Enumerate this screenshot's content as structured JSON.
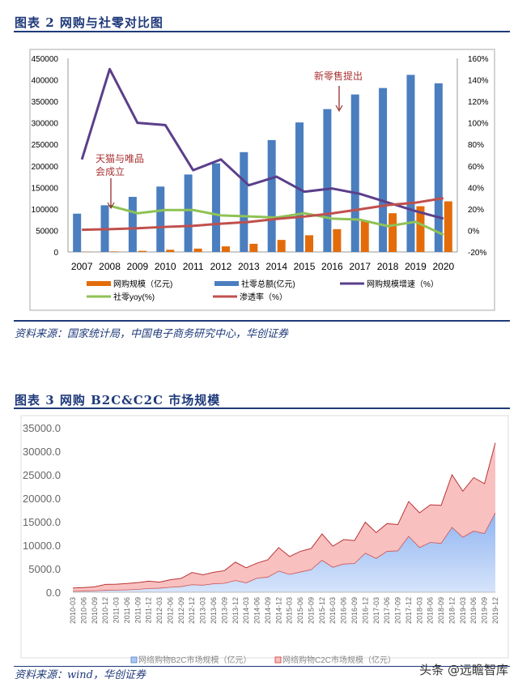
{
  "figure2": {
    "title": "图表 2   网购与社零对比图",
    "source": "资料来源：国家统计局，中国电子商务研究中心，华创证券"
  },
  "figure3": {
    "title": "图表 3   网购 B2C&C2C 市场规模",
    "source": "资料来源：wind，华创证券"
  },
  "watermark": "头条 @远瞻智库",
  "chart_data": [
    {
      "type": "bar+line",
      "categories": [
        "2007",
        "2008",
        "2009",
        "2010",
        "2011",
        "2012",
        "2013",
        "2014",
        "2015",
        "2016",
        "2017",
        "2018",
        "2019",
        "2020"
      ],
      "y_left": {
        "lim": [
          0,
          450000
        ],
        "ticks": [
          "0",
          "50000",
          "100000",
          "150000",
          "200000",
          "250000",
          "300000",
          "350000",
          "400000",
          "450000"
        ]
      },
      "y_right": {
        "lim": [
          -20,
          160
        ],
        "ticks": [
          "-20%",
          "0%",
          "20%",
          "40%",
          "60%",
          "80%",
          "100%",
          "120%",
          "140%",
          "160%"
        ]
      },
      "series": [
        {
          "name": "网购规模（亿元)",
          "kind": "bar",
          "axis": "left",
          "color": "#e36c0a",
          "values": [
            561,
            1300,
            2600,
            5100,
            7800,
            13000,
            18900,
            28000,
            38800,
            53000,
            71800,
            90000,
            106300,
            117600
          ]
        },
        {
          "name": "社零总额(亿元)",
          "kind": "bar",
          "axis": "left",
          "color": "#4a7ebf",
          "values": [
            89000,
            108500,
            128000,
            152000,
            180000,
            206000,
            232000,
            260000,
            301000,
            332000,
            366000,
            381000,
            411600,
            392000
          ]
        },
        {
          "name": "网购规模增速（%）",
          "kind": "line",
          "axis": "right",
          "color": "#5b3f8a",
          "values": [
            66,
            150,
            100,
            98,
            56,
            66,
            42,
            50,
            36,
            39,
            34,
            26,
            18,
            11
          ]
        },
        {
          "name": "社零yoy(%)",
          "kind": "line",
          "axis": "right",
          "color": "#8fc255",
          "values": [
            null,
            23,
            16,
            19,
            19,
            14,
            13,
            12,
            16,
            11,
            10,
            4,
            8,
            -4
          ]
        },
        {
          "name": "渗透率（%）",
          "kind": "line",
          "axis": "right",
          "color": "#c0504d",
          "values": [
            0.6,
            1.2,
            2,
            3.3,
            4.3,
            6.3,
            7.9,
            10.7,
            12.9,
            15.9,
            19.6,
            23.6,
            25.8,
            30
          ]
        }
      ],
      "annotations": [
        {
          "text": "天猫与唯品会成立",
          "category": "2008"
        },
        {
          "text": "新零售提出",
          "category": "2016"
        }
      ],
      "legend": "bottom",
      "grid": false
    },
    {
      "type": "area",
      "stacked": true,
      "categories": [
        "2010-03",
        "2010-06",
        "2010-09",
        "2010-12",
        "2011-03",
        "2011-06",
        "2011-09",
        "2011-12",
        "2012-03",
        "2012-06",
        "2012-09",
        "2012-12",
        "2013-03",
        "2013-06",
        "2013-09",
        "2013-12",
        "2014-03",
        "2014-06",
        "2014-09",
        "2014-12",
        "2015-03",
        "2015-06",
        "2015-09",
        "2015-12",
        "2016-03",
        "2016-06",
        "2016-09",
        "2016-12",
        "2017-03",
        "2017-06",
        "2017-09",
        "2017-12",
        "2018-03",
        "2018-06",
        "2018-09",
        "2018-12",
        "2019-03",
        "2019-06",
        "2019-09",
        "2019-12"
      ],
      "ylim": [
        0,
        35000
      ],
      "yticks": [
        "0.0",
        "5000.0",
        "10000.0",
        "15000.0",
        "20000.0",
        "25000.0",
        "30000.0",
        "35000.0"
      ],
      "series": [
        {
          "name": "网络购物B2C市场规模（亿元）",
          "color": "#a9c8f5",
          "values": [
            200,
            250,
            300,
            400,
            450,
            500,
            600,
            800,
            850,
            1050,
            1200,
            1600,
            1500,
            1800,
            1900,
            2500,
            2000,
            3000,
            3200,
            4500,
            3800,
            4300,
            4800,
            6800,
            5300,
            6000,
            6100,
            8300,
            7200,
            8700,
            8800,
            11900,
            9500,
            10600,
            10400,
            13800,
            11700,
            13000,
            12500,
            16900
          ]
        },
        {
          "name": "网络购物C2C市场规模（亿元）",
          "color": "#f9c0c0",
          "values": [
            700,
            750,
            850,
            1250,
            1250,
            1350,
            1450,
            1550,
            1300,
            1600,
            1750,
            2600,
            2200,
            2450,
            2700,
            3900,
            3200,
            3200,
            3700,
            5000,
            3800,
            4400,
            4500,
            5600,
            4500,
            5200,
            4900,
            6600,
            5500,
            5900,
            5600,
            7400,
            7400,
            8000,
            8100,
            11200,
            9800,
            11400,
            10600,
            14900
          ]
        }
      ],
      "legend": "bottom",
      "grid": false
    }
  ]
}
